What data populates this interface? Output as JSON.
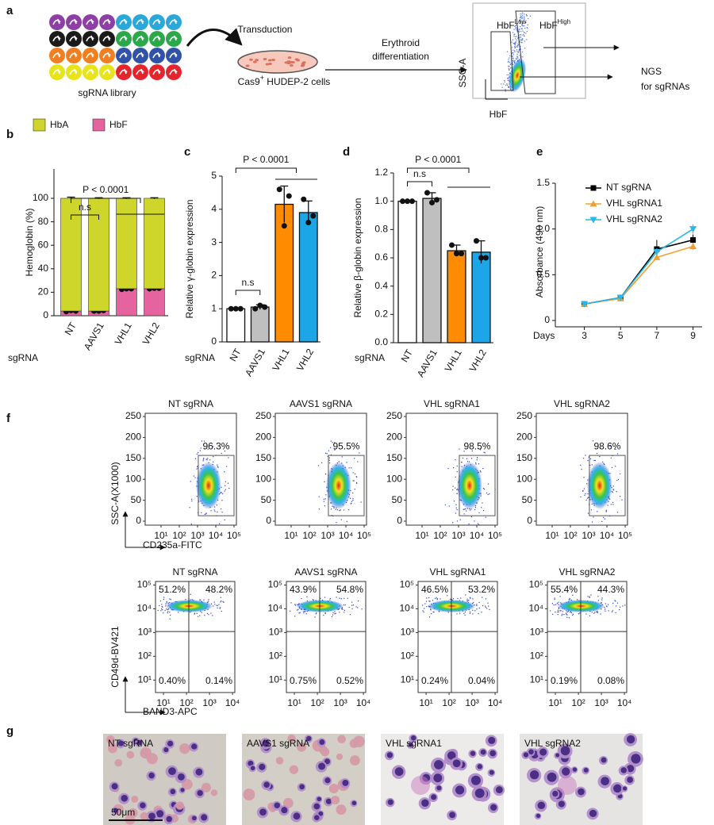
{
  "panel_labels": [
    "a",
    "b",
    "c",
    "d",
    "e",
    "f",
    "g"
  ],
  "schematic": {
    "library_label": "sgRNA library",
    "step1": "Transduction",
    "cells": {
      "text": "Cas9",
      "sup": "+",
      "rest": " HUDEP-2 cells"
    },
    "step2": [
      "Erythroid",
      "differentiation"
    ],
    "gates": [
      {
        "text": "HbF",
        "sup": "Low"
      },
      {
        "text": "HbF",
        "sup": "High"
      }
    ],
    "y_label": "SSC-A",
    "x_label": "HbF",
    "output": [
      "NGS",
      "for sgRNAs"
    ]
  },
  "chart_data": [
    {
      "type": "stacked_bar",
      "x_label": "sgRNA",
      "y_label": "Hemoglobin (%)",
      "categories": [
        "NT",
        "AAVS1",
        "VHL1",
        "VHL2"
      ],
      "series": [
        {
          "name": "HbA",
          "color": "#cfd62b",
          "values": [
            96,
            96,
            77,
            77
          ],
          "errors": [
            1,
            0.5,
            0.5,
            0.5
          ]
        },
        {
          "name": "HbF",
          "color": "#e5639f",
          "values": [
            4,
            4,
            23,
            23
          ],
          "points": [
            [
              3.5,
              4.5,
              4
            ],
            [
              4,
              4,
              4.5
            ],
            [
              22.5,
              23,
              23
            ],
            [
              23,
              23.5,
              23.5
            ]
          ]
        }
      ],
      "ylim": [
        0,
        125
      ],
      "yticks": [
        0,
        20,
        40,
        60,
        80,
        100
      ],
      "legend": "top",
      "annotations": [
        "P < 0.0001",
        "n.s"
      ]
    },
    {
      "type": "bar",
      "x_label": "sgRNA",
      "y_label": "Relative γ-globin expression",
      "categories": [
        "NT",
        "AAVS1",
        "VHL1",
        "VHL2"
      ],
      "values": [
        1,
        1.05,
        4.15,
        3.9
      ],
      "errors": [
        0.02,
        0.07,
        0.55,
        0.35
      ],
      "colors": [
        "#ffffff",
        "#bfbfbf",
        "#ff8c00",
        "#1ca6e8"
      ],
      "points": [
        [
          1,
          1,
          1
        ],
        [
          1,
          1.1,
          1.05
        ],
        [
          4.6,
          3.5,
          4.4
        ],
        [
          4.3,
          3.6,
          3.8
        ]
      ],
      "ylim": [
        0,
        5
      ],
      "yticks": [
        0,
        1,
        2,
        3,
        4,
        5
      ],
      "annotations": [
        "P < 0.0001",
        "n.s"
      ]
    },
    {
      "type": "bar",
      "x_label": "sgRNA",
      "y_label": "Relative β-globin expression",
      "categories": [
        "NT",
        "AAVS1",
        "VHL1",
        "VHL2"
      ],
      "values": [
        1,
        1.02,
        0.65,
        0.64
      ],
      "errors": [
        0.005,
        0.04,
        0.04,
        0.08
      ],
      "colors": [
        "#ffffff",
        "#bfbfbf",
        "#ff8c00",
        "#1ca6e8"
      ],
      "points": [
        [
          1,
          1,
          1
        ],
        [
          1.06,
          0.99,
          1.01
        ],
        [
          0.69,
          0.63,
          0.63
        ],
        [
          0.72,
          0.6,
          0.6
        ]
      ],
      "ylim": [
        0,
        1.2
      ],
      "yticks": [
        {
          "value": 0,
          "label": "0.0"
        },
        0.2,
        0.4,
        0.6,
        0.8,
        {
          "value": 1,
          "label": "1.0"
        },
        1.2
      ],
      "annotations": [
        "P < 0.0001",
        "n.s"
      ]
    },
    {
      "type": "line",
      "x_label": "Days",
      "y_label": "Absorbance (490 nm)",
      "x": [
        3,
        5,
        7,
        9
      ],
      "xlim": [
        1.4,
        9.5
      ],
      "xticks": [
        3,
        5,
        7,
        9
      ],
      "ylim": [
        0,
        1.5
      ],
      "yticks": [
        0,
        0.5,
        {
          "value": 1,
          "label": "1.0"
        },
        1.5
      ],
      "series": [
        {
          "name": "NT sgRNA",
          "color": "#000000",
          "marker": "square",
          "values": [
            0.18,
            0.25,
            0.78,
            0.88
          ],
          "errors": [
            0.01,
            0.01,
            0.1,
            0.06
          ]
        },
        {
          "name": "VHL sgRNA1",
          "color": "#f0a030",
          "marker": "triangle-up",
          "values": [
            0.18,
            0.24,
            0.69,
            0.81
          ],
          "errors": [
            0.01,
            0.01,
            0.03,
            0.04
          ]
        },
        {
          "name": "VHL sgRNA2",
          "color": "#29b6e8",
          "marker": "triangle-down",
          "values": [
            0.18,
            0.25,
            0.75,
            1.0
          ],
          "errors": [
            0.01,
            0.01,
            0.04,
            0.05
          ]
        }
      ]
    }
  ],
  "flow": {
    "titles": [
      "NT sgRNA",
      "AAVS1 sgRNA",
      "VHL sgRNA1",
      "VHL sgRNA2"
    ],
    "plots": [
      {
        "y_label": "SSC-A(X1000)",
        "x_label": "CD235a-FITC",
        "xscale": "log",
        "yscale": "linear",
        "xlim": [
          1.35,
          135000
        ],
        "ylim": [
          -9.5,
          257.6
        ],
        "xticks": [
          {
            "value": 10,
            "label": "10¹"
          },
          {
            "value": 100,
            "label": "10²"
          },
          {
            "value": 1000,
            "label": "10³"
          },
          {
            "value": 10000,
            "label": "10⁴"
          },
          {
            "value": 100000,
            "label": "10⁵"
          }
        ],
        "yticks": [
          0,
          50,
          100,
          150,
          200,
          250
        ],
        "gate": {
          "x": [
            1100,
            100000
          ],
          "y": [
            13,
            157
          ]
        },
        "percents": [
          "96.3%",
          "95.5%",
          "98.5%",
          "98.6%"
        ]
      },
      {
        "y_label": "CD49d-BV421",
        "x_label": "BAND3-APC",
        "xscale": "log",
        "yscale": "log",
        "xlim": [
          4.5,
          12600
        ],
        "ylim": [
          3,
          141000
        ],
        "xticks": [
          {
            "value": 10,
            "label": "10¹"
          },
          {
            "value": 100,
            "label": "10²"
          },
          {
            "value": 1000,
            "label": "10³"
          },
          {
            "value": 10000,
            "label": "10⁴"
          }
        ],
        "yticks": [
          {
            "value": 10,
            "label": "10¹"
          },
          {
            "value": 100,
            "label": "10²"
          },
          {
            "value": 1000,
            "label": "10³"
          },
          {
            "value": 10000,
            "label": "10⁴"
          },
          {
            "value": 100000,
            "label": "10⁵"
          }
        ],
        "quadrant": {
          "x": 126,
          "y": 1100
        },
        "percents": [
          [
            "51.2%",
            "48.2%",
            "0.40%",
            "0.14%"
          ],
          [
            "43.9%",
            "54.8%",
            "0.75%",
            "0.52%"
          ],
          [
            "46.5%",
            "53.2%",
            "0.24%",
            "0.04%"
          ],
          [
            "55.4%",
            "44.3%",
            "0.19%",
            "0.08%"
          ]
        ]
      }
    ]
  },
  "micrographs": {
    "labels": [
      "NT sgRNA",
      "AAVS1 sgRNA",
      "VHL sgRNA1",
      "VHL sgRNA2"
    ],
    "scale": "50μm"
  }
}
